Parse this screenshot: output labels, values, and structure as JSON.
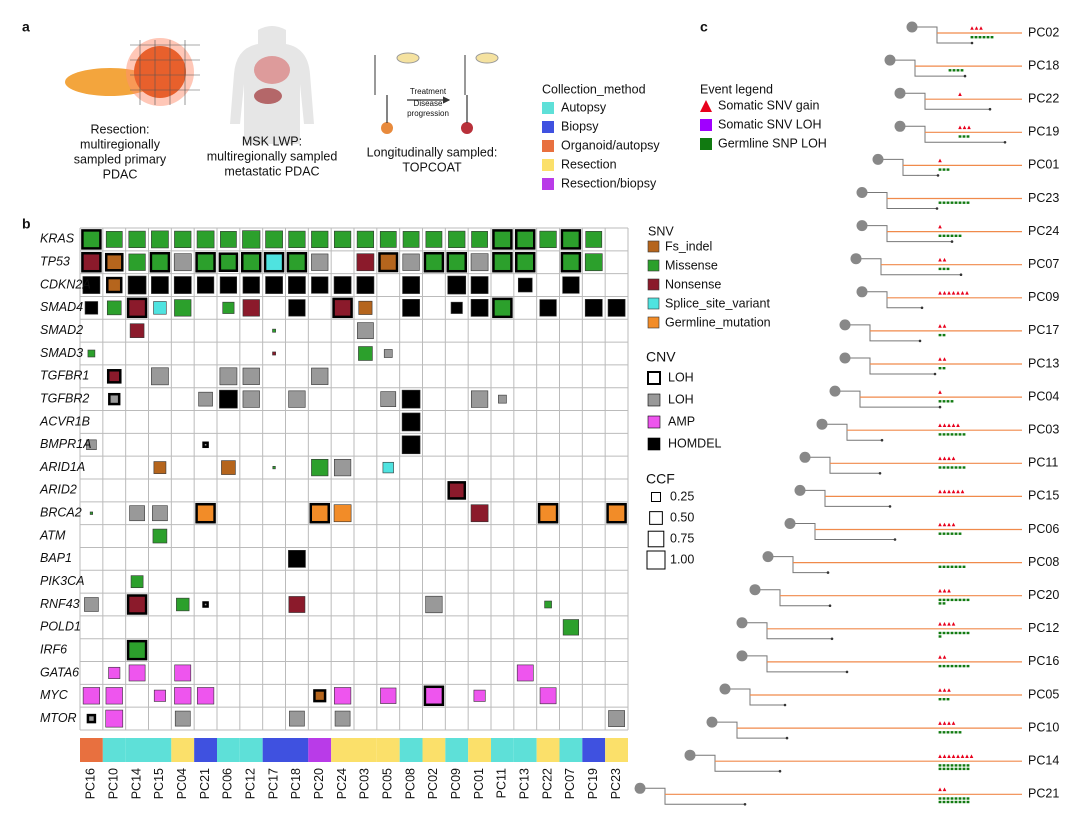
{
  "panel_labels": [
    "a",
    "b",
    "c"
  ],
  "panel_a": {
    "captions": [
      [
        "Resection:",
        "multiregionally",
        "sampled primary",
        "PDAC"
      ],
      [
        "MSK LWP:",
        "multiregionally sampled",
        "metastatic PDAC"
      ],
      [
        "Longitudinally sampled:",
        "TOPCOAT"
      ]
    ],
    "arrow_labels": [
      "Treatment",
      "Disease",
      "progression"
    ],
    "collection_legend": {
      "title": "Collection_method",
      "items": [
        "Autopsy",
        "Biopsy",
        "Organoid/autopsy",
        "Resection",
        "Resection/biopsy"
      ],
      "colors": [
        "#5ee0d8",
        "#3f51e0",
        "#e8703f",
        "#fbe06a",
        "#b93be8"
      ]
    }
  },
  "oncoprint": {
    "genes": [
      "KRAS",
      "TP53",
      "CDKN2A",
      "SMAD4",
      "SMAD2",
      "SMAD3",
      "TGFBR1",
      "TGFBR2",
      "ACVR1B",
      "BMPR1A",
      "ARID1A",
      "ARID2",
      "BRCA2",
      "ATM",
      "BAP1",
      "PIK3CA",
      "RNF43",
      "POLD1",
      "IRF6",
      "GATA6",
      "MYC",
      "MTOR"
    ],
    "samples": [
      "PC16",
      "PC10",
      "PC14",
      "PC15",
      "PC04",
      "PC21",
      "PC06",
      "PC12",
      "PC17",
      "PC18",
      "PC20",
      "PC24",
      "PC03",
      "PC05",
      "PC08",
      "PC02",
      "PC09",
      "PC01",
      "PC11",
      "PC13",
      "PC22",
      "PC07",
      "PC19",
      "PC23"
    ],
    "collection_method": [
      2,
      0,
      0,
      0,
      3,
      1,
      0,
      0,
      1,
      1,
      4,
      3,
      3,
      3,
      0,
      3,
      0,
      3,
      0,
      0,
      3,
      0,
      1,
      3
    ],
    "snv_legend": {
      "title": "SNV",
      "items": [
        "Fs_indel",
        "Missense",
        "Nonsense",
        "Splice_site_variant",
        "Germline_mutation"
      ],
      "colors": [
        "#b5651d",
        "#2ca02c",
        "#8b1a2b",
        "#4fe3e0",
        "#f28c28"
      ]
    },
    "cnv_legend": {
      "title": "CNV",
      "items": [
        "LOH",
        "LOH",
        "AMP",
        "HOMDEL"
      ],
      "colors": [
        "#ffffff",
        "#999999",
        "#ee55ee",
        "#000000"
      ]
    },
    "ccf_legend": {
      "title": "CCF",
      "ticks": [
        0.25,
        {
          "value": 0.5,
          "label": "0.50"
        },
        0.75,
        {
          "value": 1,
          "label": "1.00"
        }
      ]
    },
    "cells": [
      [
        0,
        0,
        1,
        1,
        1
      ],
      [
        0,
        1,
        1,
        0.8,
        0
      ],
      [
        0,
        2,
        1,
        0.85,
        0
      ],
      [
        0,
        3,
        1,
        0.9,
        0
      ],
      [
        0,
        4,
        1,
        0.85,
        0
      ],
      [
        0,
        5,
        1,
        0.9,
        0
      ],
      [
        0,
        6,
        1,
        0.8,
        0
      ],
      [
        0,
        7,
        1,
        0.95,
        0
      ],
      [
        0,
        8,
        1,
        0.9,
        0
      ],
      [
        0,
        9,
        1,
        0.85,
        0
      ],
      [
        0,
        10,
        1,
        0.85,
        0
      ],
      [
        0,
        11,
        1,
        0.85,
        0
      ],
      [
        0,
        12,
        1,
        0.85,
        0
      ],
      [
        0,
        13,
        1,
        0.8,
        0
      ],
      [
        0,
        14,
        1,
        0.8,
        0
      ],
      [
        0,
        15,
        1,
        0.8,
        0
      ],
      [
        0,
        16,
        1,
        0.85,
        0
      ],
      [
        0,
        17,
        1,
        0.8,
        0
      ],
      [
        0,
        18,
        1,
        1,
        1
      ],
      [
        0,
        19,
        1,
        1,
        1
      ],
      [
        0,
        20,
        1,
        0.85,
        0
      ],
      [
        0,
        21,
        1,
        1,
        1
      ],
      [
        0,
        22,
        1,
        0.8,
        0
      ],
      [
        1,
        0,
        2,
        1,
        1
      ],
      [
        1,
        1,
        0,
        0.8,
        1
      ],
      [
        1,
        2,
        1,
        0.85,
        0
      ],
      [
        1,
        3,
        1,
        1,
        1
      ],
      [
        1,
        4,
        5,
        0.9,
        0
      ],
      [
        1,
        5,
        1,
        1,
        1
      ],
      [
        1,
        6,
        1,
        0.9,
        1
      ],
      [
        1,
        7,
        1,
        1,
        1
      ],
      [
        1,
        8,
        3,
        1,
        1
      ],
      [
        1,
        9,
        1,
        1,
        1
      ],
      [
        1,
        10,
        5,
        0.85,
        0
      ],
      [
        1,
        12,
        2,
        0.9,
        0
      ],
      [
        1,
        13,
        0,
        0.95,
        1
      ],
      [
        1,
        14,
        5,
        0.85,
        0
      ],
      [
        1,
        15,
        1,
        1,
        1
      ],
      [
        1,
        16,
        1,
        1,
        1
      ],
      [
        1,
        17,
        5,
        0.9,
        0
      ],
      [
        1,
        18,
        1,
        1,
        1
      ],
      [
        1,
        19,
        1,
        1,
        1
      ],
      [
        1,
        21,
        1,
        1,
        1
      ],
      [
        1,
        22,
        1,
        0.9,
        0
      ],
      [
        2,
        0,
        7,
        0.9,
        0
      ],
      [
        2,
        1,
        0,
        0.6,
        1
      ],
      [
        2,
        2,
        7,
        1,
        0
      ],
      [
        2,
        3,
        7,
        0.9,
        0
      ],
      [
        2,
        4,
        7,
        0.9,
        0
      ],
      [
        2,
        5,
        7,
        0.85,
        0
      ],
      [
        2,
        6,
        7,
        0.85,
        0
      ],
      [
        2,
        7,
        7,
        0.85,
        0
      ],
      [
        2,
        8,
        7,
        0.9,
        0
      ],
      [
        2,
        9,
        7,
        0.9,
        0
      ],
      [
        2,
        10,
        7,
        0.85,
        0
      ],
      [
        2,
        11,
        7,
        0.9,
        0
      ],
      [
        2,
        12,
        7,
        0.9,
        0
      ],
      [
        2,
        14,
        7,
        0.9,
        0
      ],
      [
        2,
        16,
        7,
        1,
        0
      ],
      [
        2,
        17,
        7,
        0.9,
        0
      ],
      [
        2,
        19,
        7,
        0.6,
        0
      ],
      [
        2,
        21,
        7,
        0.85,
        0
      ],
      [
        3,
        0,
        7,
        0.5,
        0
      ],
      [
        3,
        1,
        1,
        0.6,
        0
      ],
      [
        3,
        2,
        2,
        1,
        1
      ],
      [
        3,
        3,
        3,
        0.5,
        0
      ],
      [
        3,
        4,
        1,
        0.85,
        0
      ],
      [
        3,
        6,
        1,
        0.4,
        0
      ],
      [
        3,
        7,
        2,
        0.85,
        0
      ],
      [
        3,
        9,
        7,
        0.85,
        0
      ],
      [
        3,
        11,
        2,
        1,
        1
      ],
      [
        3,
        12,
        0,
        0.55,
        0
      ],
      [
        3,
        14,
        7,
        0.9,
        0
      ],
      [
        3,
        16,
        7,
        0.4,
        0
      ],
      [
        3,
        17,
        7,
        0.9,
        0
      ],
      [
        3,
        18,
        1,
        1,
        1
      ],
      [
        3,
        20,
        7,
        0.85,
        0
      ],
      [
        3,
        22,
        7,
        0.9,
        0
      ],
      [
        3,
        23,
        7,
        0.9,
        0
      ],
      [
        4,
        2,
        2,
        0.6,
        0
      ],
      [
        4,
        8,
        1,
        0.03,
        0
      ],
      [
        4,
        12,
        5,
        0.8,
        0
      ],
      [
        5,
        0,
        1,
        0.15,
        0
      ],
      [
        5,
        8,
        2,
        0.03,
        0
      ],
      [
        5,
        12,
        1,
        0.6,
        0
      ],
      [
        5,
        13,
        5,
        0.2,
        0
      ],
      [
        6,
        1,
        2,
        0.45,
        1
      ],
      [
        6,
        3,
        5,
        0.9,
        0
      ],
      [
        6,
        6,
        5,
        0.9,
        0
      ],
      [
        6,
        7,
        5,
        0.85,
        0
      ],
      [
        6,
        10,
        5,
        0.85,
        0
      ],
      [
        7,
        1,
        5,
        0.3,
        1
      ],
      [
        7,
        5,
        5,
        0.6,
        0
      ],
      [
        7,
        6,
        7,
        1,
        0
      ],
      [
        7,
        7,
        5,
        0.85,
        0
      ],
      [
        7,
        9,
        5,
        0.85,
        0
      ],
      [
        7,
        13,
        5,
        0.7,
        0
      ],
      [
        7,
        14,
        7,
        1,
        0
      ],
      [
        7,
        17,
        5,
        0.85,
        0
      ],
      [
        7,
        18,
        5,
        0.2,
        0
      ],
      [
        8,
        14,
        7,
        1,
        0
      ],
      [
        9,
        0,
        5,
        0.3,
        0
      ],
      [
        9,
        5,
        5,
        0.05,
        1
      ],
      [
        9,
        14,
        7,
        1,
        0
      ],
      [
        10,
        3,
        0,
        0.45,
        0
      ],
      [
        10,
        6,
        0,
        0.6,
        0
      ],
      [
        10,
        8,
        1,
        0.02,
        0
      ],
      [
        10,
        10,
        1,
        0.85,
        0
      ],
      [
        10,
        11,
        5,
        0.85,
        0
      ],
      [
        10,
        13,
        3,
        0.35,
        0
      ],
      [
        11,
        16,
        2,
        0.8,
        1
      ],
      [
        12,
        0,
        1,
        0.02,
        0
      ],
      [
        12,
        2,
        5,
        0.7,
        0
      ],
      [
        12,
        3,
        5,
        0.7,
        0
      ],
      [
        12,
        5,
        4,
        1,
        1
      ],
      [
        12,
        10,
        4,
        1,
        1
      ],
      [
        12,
        11,
        4,
        0.9,
        0
      ],
      [
        12,
        17,
        2,
        0.9,
        0
      ],
      [
        12,
        20,
        4,
        1,
        1
      ],
      [
        12,
        23,
        4,
        1,
        1
      ],
      [
        13,
        3,
        1,
        0.6,
        0
      ],
      [
        14,
        9,
        7,
        0.9,
        0
      ],
      [
        15,
        2,
        1,
        0.45,
        0
      ],
      [
        16,
        0,
        5,
        0.6,
        0
      ],
      [
        16,
        2,
        2,
        1,
        1
      ],
      [
        16,
        4,
        1,
        0.5,
        0
      ],
      [
        16,
        5,
        5,
        0.05,
        1
      ],
      [
        16,
        9,
        2,
        0.8,
        0
      ],
      [
        16,
        15,
        5,
        0.85,
        0
      ],
      [
        16,
        20,
        1,
        0.15,
        0
      ],
      [
        17,
        21,
        1,
        0.75,
        0
      ],
      [
        18,
        2,
        1,
        1,
        1
      ],
      [
        19,
        1,
        6,
        0.4,
        0
      ],
      [
        19,
        2,
        6,
        0.8,
        0
      ],
      [
        19,
        4,
        6,
        0.8,
        0
      ],
      [
        19,
        19,
        6,
        0.8,
        0
      ],
      [
        20,
        0,
        6,
        0.85,
        0
      ],
      [
        20,
        1,
        6,
        0.85,
        0
      ],
      [
        20,
        3,
        6,
        0.4,
        0
      ],
      [
        20,
        4,
        6,
        0.85,
        0
      ],
      [
        20,
        5,
        6,
        0.85,
        0
      ],
      [
        20,
        10,
        0,
        0.35,
        1
      ],
      [
        20,
        11,
        6,
        0.85,
        0
      ],
      [
        20,
        13,
        6,
        0.75,
        0
      ],
      [
        20,
        15,
        6,
        1,
        1
      ],
      [
        20,
        17,
        6,
        0.4,
        0
      ],
      [
        20,
        20,
        6,
        0.8,
        0
      ],
      [
        21,
        0,
        5,
        0.15,
        1
      ],
      [
        21,
        1,
        6,
        0.9,
        0
      ],
      [
        21,
        4,
        5,
        0.7,
        0
      ],
      [
        21,
        9,
        5,
        0.7,
        0
      ],
      [
        21,
        11,
        5,
        0.7,
        0
      ],
      [
        21,
        23,
        5,
        0.8,
        0
      ]
    ]
  },
  "panel_c": {
    "event_legend": {
      "title": "Event legend",
      "items": [
        "Somatic SNV gain",
        "Somatic SNV LOH",
        "Germline SNP LOH"
      ],
      "colors": [
        "#e8001c",
        "#a000ff",
        "#117a11"
      ]
    },
    "trees": [
      {
        "label": "PC02",
        "snv_gain": 3,
        "germline_loh": 6
      },
      {
        "label": "PC18",
        "snv_gain": 0,
        "germline_loh": 4
      },
      {
        "label": "PC22",
        "snv_gain": 1,
        "germline_loh": 0
      },
      {
        "label": "PC19",
        "snv_gain": 3,
        "germline_loh": 3
      },
      {
        "label": "PC01",
        "snv_gain": 1,
        "germline_loh": 3
      },
      {
        "label": "PC23",
        "snv_gain": 0,
        "germline_loh": 8
      },
      {
        "label": "PC24",
        "snv_gain": 1,
        "germline_loh": 6
      },
      {
        "label": "PC07",
        "snv_gain": 2,
        "germline_loh": 3
      },
      {
        "label": "PC09",
        "snv_gain": 7,
        "germline_loh": 0
      },
      {
        "label": "PC17",
        "snv_gain": 2,
        "germline_loh": 2
      },
      {
        "label": "PC13",
        "snv_gain": 2,
        "germline_loh": 2
      },
      {
        "label": "PC04",
        "snv_gain": 1,
        "germline_loh": 4
      },
      {
        "label": "PC03",
        "snv_gain": 5,
        "germline_loh": 7
      },
      {
        "label": "PC11",
        "snv_gain": 4,
        "germline_loh": 7
      },
      {
        "label": "PC15",
        "snv_gain": 6,
        "germline_loh": 0
      },
      {
        "label": "PC06",
        "snv_gain": 4,
        "germline_loh": 6
      },
      {
        "label": "PC08",
        "snv_gain": 0,
        "germline_loh": 7
      },
      {
        "label": "PC20",
        "snv_gain": 3,
        "germline_loh": 10
      },
      {
        "label": "PC12",
        "snv_gain": 4,
        "germline_loh": 9
      },
      {
        "label": "PC16",
        "snv_gain": 2,
        "germline_loh": 8
      },
      {
        "label": "PC05",
        "snv_gain": 3,
        "germline_loh": 3
      },
      {
        "label": "PC10",
        "snv_gain": 4,
        "germline_loh": 6
      },
      {
        "label": "PC14",
        "snv_gain": 8,
        "germline_loh": 16
      },
      {
        "label": "PC21",
        "snv_gain": 2,
        "germline_loh": 16
      }
    ]
  }
}
